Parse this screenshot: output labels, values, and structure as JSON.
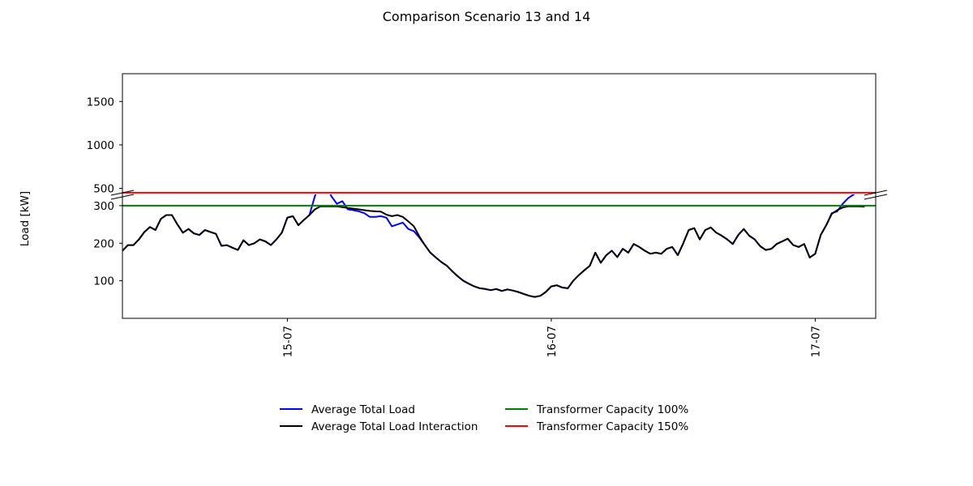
{
  "chart_data": {
    "type": "line",
    "title": "Comparison Scenario 13 and 14",
    "ylabel": "Load [kW]",
    "xlabel": "",
    "broken_y_axis": true,
    "upper_panel": {
      "ylim": [
        430,
        1820
      ],
      "yticks": [
        500,
        1000,
        1500
      ],
      "ytick_labels": [
        "500",
        "1000",
        "1500"
      ]
    },
    "lower_panel": {
      "ylim": [
        0,
        330
      ],
      "yticks": [
        100,
        200,
        300
      ],
      "ytick_labels": [
        "100",
        "200",
        "300"
      ]
    },
    "x_unit": "hours since 14-07 00:00",
    "xlim": [
      0,
      68.5
    ],
    "xticks": [
      {
        "x": 15,
        "label": "15-07"
      },
      {
        "x": 39,
        "label": "16-07"
      },
      {
        "x": 63,
        "label": "17-07"
      }
    ],
    "series": [
      {
        "name": "Average Total Load",
        "color": "#0000ff",
        "points": [
          [
            0,
            180
          ],
          [
            0.5,
            195
          ],
          [
            1,
            195
          ],
          [
            1.5,
            210
          ],
          [
            2,
            230
          ],
          [
            2.5,
            243
          ],
          [
            3,
            235
          ],
          [
            3.5,
            265
          ],
          [
            4,
            275
          ],
          [
            4.5,
            275
          ],
          [
            5,
            250
          ],
          [
            5.5,
            228
          ],
          [
            6,
            238
          ],
          [
            6.5,
            226
          ],
          [
            7,
            222
          ],
          [
            7.5,
            235
          ],
          [
            8,
            230
          ],
          [
            8.5,
            225
          ],
          [
            9,
            193
          ],
          [
            9.5,
            195
          ],
          [
            10,
            188
          ],
          [
            10.5,
            182
          ],
          [
            11,
            208
          ],
          [
            11.5,
            195
          ],
          [
            12,
            200
          ],
          [
            12.5,
            210
          ],
          [
            13,
            205
          ],
          [
            13.5,
            195
          ],
          [
            14,
            210
          ],
          [
            14.5,
            228
          ],
          [
            15,
            268
          ],
          [
            15.5,
            272
          ],
          [
            16,
            248
          ],
          [
            16.5,
            262
          ],
          [
            17,
            275
          ],
          [
            17.5,
            325
          ],
          [
            18,
            360
          ],
          [
            18.5,
            355
          ],
          [
            19,
            325
          ],
          [
            19.5,
            305
          ],
          [
            20,
            312
          ],
          [
            20.5,
            290
          ],
          [
            21,
            288
          ],
          [
            21.5,
            285
          ],
          [
            22,
            280
          ],
          [
            22.5,
            270
          ],
          [
            23,
            270
          ],
          [
            23.5,
            272
          ],
          [
            24,
            268
          ],
          [
            24.5,
            245
          ],
          [
            25,
            250
          ],
          [
            25.5,
            255
          ],
          [
            26,
            238
          ],
          [
            26.5,
            232
          ],
          [
            27,
            215
          ],
          [
            27.5,
            195
          ],
          [
            28,
            175
          ],
          [
            28.5,
            162
          ],
          [
            29,
            150
          ],
          [
            29.5,
            140
          ],
          [
            30,
            125
          ],
          [
            30.5,
            112
          ],
          [
            31,
            100
          ],
          [
            31.5,
            92
          ],
          [
            32,
            85
          ],
          [
            32.5,
            80
          ],
          [
            33,
            78
          ],
          [
            33.5,
            75
          ],
          [
            34,
            78
          ],
          [
            34.5,
            73
          ],
          [
            35,
            77
          ],
          [
            35.5,
            74
          ],
          [
            36,
            70
          ],
          [
            36.5,
            65
          ],
          [
            37,
            60
          ],
          [
            37.5,
            57
          ],
          [
            38,
            60
          ],
          [
            38.5,
            70
          ],
          [
            39,
            85
          ],
          [
            39.5,
            88
          ],
          [
            40,
            82
          ],
          [
            40.5,
            80
          ],
          [
            41,
            100
          ],
          [
            41.5,
            115
          ],
          [
            42,
            128
          ],
          [
            42.5,
            140
          ],
          [
            43,
            175
          ],
          [
            43.5,
            148
          ],
          [
            44,
            168
          ],
          [
            44.5,
            180
          ],
          [
            45,
            163
          ],
          [
            45.5,
            185
          ],
          [
            46,
            175
          ],
          [
            46.5,
            198
          ],
          [
            47,
            190
          ],
          [
            47.5,
            180
          ],
          [
            48,
            172
          ],
          [
            48.5,
            175
          ],
          [
            49,
            172
          ],
          [
            49.5,
            185
          ],
          [
            50,
            190
          ],
          [
            50.5,
            168
          ],
          [
            51,
            200
          ],
          [
            51.5,
            235
          ],
          [
            52,
            240
          ],
          [
            52.5,
            210
          ],
          [
            53,
            235
          ],
          [
            53.5,
            242
          ],
          [
            54,
            228
          ],
          [
            54.5,
            220
          ],
          [
            55,
            210
          ],
          [
            55.5,
            198
          ],
          [
            56,
            222
          ],
          [
            56.5,
            238
          ],
          [
            57,
            220
          ],
          [
            57.5,
            210
          ],
          [
            58,
            192
          ],
          [
            58.5,
            182
          ],
          [
            59,
            185
          ],
          [
            59.5,
            198
          ],
          [
            60,
            205
          ],
          [
            60.5,
            212
          ],
          [
            61,
            195
          ],
          [
            61.5,
            190
          ],
          [
            62,
            198
          ],
          [
            62.5,
            162
          ],
          [
            63,
            172
          ],
          [
            63.5,
            222
          ],
          [
            64,
            248
          ],
          [
            64.5,
            280
          ],
          [
            65,
            285
          ],
          [
            65.5,
            305
          ],
          [
            66,
            320
          ],
          [
            66.5,
            330
          ],
          [
            67,
            345
          ],
          [
            67.5,
            365
          ]
        ]
      },
      {
        "name": "Average Total Load Interaction",
        "color": "#000000",
        "points": [
          [
            0,
            180
          ],
          [
            0.5,
            195
          ],
          [
            1,
            195
          ],
          [
            1.5,
            210
          ],
          [
            2,
            230
          ],
          [
            2.5,
            243
          ],
          [
            3,
            235
          ],
          [
            3.5,
            265
          ],
          [
            4,
            275
          ],
          [
            4.5,
            275
          ],
          [
            5,
            250
          ],
          [
            5.5,
            228
          ],
          [
            6,
            238
          ],
          [
            6.5,
            226
          ],
          [
            7,
            222
          ],
          [
            7.5,
            235
          ],
          [
            8,
            230
          ],
          [
            8.5,
            225
          ],
          [
            9,
            193
          ],
          [
            9.5,
            195
          ],
          [
            10,
            188
          ],
          [
            10.5,
            182
          ],
          [
            11,
            208
          ],
          [
            11.5,
            195
          ],
          [
            12,
            200
          ],
          [
            12.5,
            210
          ],
          [
            13,
            205
          ],
          [
            13.5,
            195
          ],
          [
            14,
            210
          ],
          [
            14.5,
            228
          ],
          [
            15,
            268
          ],
          [
            15.5,
            272
          ],
          [
            16,
            248
          ],
          [
            16.5,
            262
          ],
          [
            17,
            275
          ],
          [
            17.5,
            290
          ],
          [
            18,
            298
          ],
          [
            18.5,
            298
          ],
          [
            19,
            298
          ],
          [
            19.5,
            298
          ],
          [
            20,
            296
          ],
          [
            20.5,
            294
          ],
          [
            21,
            292
          ],
          [
            21.5,
            290
          ],
          [
            22,
            288
          ],
          [
            22.5,
            286
          ],
          [
            23,
            285
          ],
          [
            23.5,
            284
          ],
          [
            24,
            276
          ],
          [
            24.5,
            272
          ],
          [
            25,
            275
          ],
          [
            25.5,
            270
          ],
          [
            26,
            258
          ],
          [
            26.5,
            245
          ],
          [
            27,
            218
          ],
          [
            27.5,
            195
          ],
          [
            28,
            175
          ],
          [
            28.5,
            162
          ],
          [
            29,
            150
          ],
          [
            29.5,
            140
          ],
          [
            30,
            125
          ],
          [
            30.5,
            112
          ],
          [
            31,
            100
          ],
          [
            31.5,
            92
          ],
          [
            32,
            85
          ],
          [
            32.5,
            80
          ],
          [
            33,
            78
          ],
          [
            33.5,
            75
          ],
          [
            34,
            78
          ],
          [
            34.5,
            73
          ],
          [
            35,
            77
          ],
          [
            35.5,
            74
          ],
          [
            36,
            70
          ],
          [
            36.5,
            65
          ],
          [
            37,
            60
          ],
          [
            37.5,
            57
          ],
          [
            38,
            60
          ],
          [
            38.5,
            70
          ],
          [
            39,
            85
          ],
          [
            39.5,
            88
          ],
          [
            40,
            82
          ],
          [
            40.5,
            80
          ],
          [
            41,
            100
          ],
          [
            41.5,
            115
          ],
          [
            42,
            128
          ],
          [
            42.5,
            140
          ],
          [
            43,
            175
          ],
          [
            43.5,
            148
          ],
          [
            44,
            168
          ],
          [
            44.5,
            180
          ],
          [
            45,
            163
          ],
          [
            45.5,
            185
          ],
          [
            46,
            175
          ],
          [
            46.5,
            198
          ],
          [
            47,
            190
          ],
          [
            47.5,
            180
          ],
          [
            48,
            172
          ],
          [
            48.5,
            175
          ],
          [
            49,
            172
          ],
          [
            49.5,
            185
          ],
          [
            50,
            190
          ],
          [
            50.5,
            168
          ],
          [
            51,
            200
          ],
          [
            51.5,
            235
          ],
          [
            52,
            240
          ],
          [
            52.5,
            210
          ],
          [
            53,
            235
          ],
          [
            53.5,
            242
          ],
          [
            54,
            228
          ],
          [
            54.5,
            220
          ],
          [
            55,
            210
          ],
          [
            55.5,
            198
          ],
          [
            56,
            222
          ],
          [
            56.5,
            238
          ],
          [
            57,
            220
          ],
          [
            57.5,
            210
          ],
          [
            58,
            192
          ],
          [
            58.5,
            182
          ],
          [
            59,
            185
          ],
          [
            59.5,
            198
          ],
          [
            60,
            205
          ],
          [
            60.5,
            212
          ],
          [
            61,
            195
          ],
          [
            61.5,
            190
          ],
          [
            62,
            198
          ],
          [
            62.5,
            162
          ],
          [
            63,
            172
          ],
          [
            63.5,
            222
          ],
          [
            64,
            248
          ],
          [
            64.5,
            278
          ],
          [
            65,
            288
          ],
          [
            65.5,
            295
          ],
          [
            66,
            298
          ],
          [
            66.5,
            298
          ],
          [
            67,
            298
          ],
          [
            67.5,
            297
          ]
        ]
      },
      {
        "name": "Transformer Capacity 100%",
        "color": "#008000",
        "constant": 300
      },
      {
        "name": "Transformer Capacity 150%",
        "color": "#ff0000",
        "constant": 450
      }
    ],
    "legend": {
      "placement": "bottom-center",
      "columns": 2,
      "entries": [
        {
          "label": "Average Total Load",
          "color": "#0000ff"
        },
        {
          "label": "Average Total Load Interaction",
          "color": "#000000"
        },
        {
          "label": "Transformer Capacity 100%",
          "color": "#008000"
        },
        {
          "label": "Transformer Capacity 150%",
          "color": "#ff0000"
        }
      ]
    },
    "grid": false
  }
}
